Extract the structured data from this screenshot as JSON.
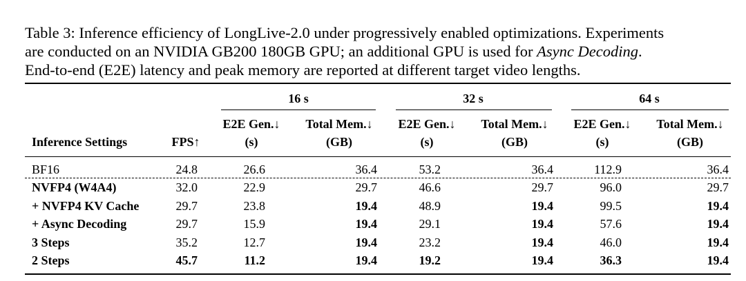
{
  "caption": {
    "line1": "Table 3: Inference efficiency of LongLive-2.0 under progressively enabled optimizations. Experiments",
    "line2_pre": "are conducted on an NVIDIA GB200 180GB GPU; an additional GPU is used for ",
    "line2_italic": "Async Decoding",
    "line2_post": ".",
    "line3": "End-to-end (E2E) latency and peak memory are reported at different target video lengths."
  },
  "header": {
    "groups": [
      "16 s",
      "32 s",
      "64 s"
    ],
    "settings": "Inference Settings",
    "fps": "FPS↑",
    "e2e_line1": "E2E Gen.↓",
    "e2e_line2": "(s)",
    "mem_line1": "Total Mem.↓",
    "mem_line2": "(GB)"
  },
  "rows": [
    {
      "setting": "BF16",
      "fps": "24.8",
      "e2e16": "26.6",
      "mem16": "36.4",
      "e2e32": "53.2",
      "mem32": "36.4",
      "e2e64": "112.9",
      "mem64": "36.4"
    },
    {
      "setting": "NVFP4 (W4A4)",
      "fps": "32.0",
      "e2e16": "22.9",
      "mem16": "29.7",
      "e2e32": "46.6",
      "mem32": "29.7",
      "e2e64": "96.0",
      "mem64": "29.7"
    },
    {
      "setting": "+ NVFP4 KV Cache",
      "fps": "29.7",
      "e2e16": "23.8",
      "mem16": "19.4",
      "e2e32": "48.9",
      "mem32": "19.4",
      "e2e64": "99.5",
      "mem64": "19.4"
    },
    {
      "setting": "+ Async Decoding",
      "fps": "29.7",
      "e2e16": "15.9",
      "mem16": "19.4",
      "e2e32": "29.1",
      "mem32": "19.4",
      "e2e64": "57.6",
      "mem64": "19.4"
    },
    {
      "setting": "3 Steps",
      "fps": "35.2",
      "e2e16": "12.7",
      "mem16": "19.4",
      "e2e32": "23.2",
      "mem32": "19.4",
      "e2e64": "46.0",
      "mem64": "19.4"
    },
    {
      "setting": "2 Steps",
      "fps": "45.7",
      "e2e16": "11.2",
      "mem16": "19.4",
      "e2e32": "19.2",
      "mem32": "19.4",
      "e2e64": "36.3",
      "mem64": "19.4"
    }
  ]
}
